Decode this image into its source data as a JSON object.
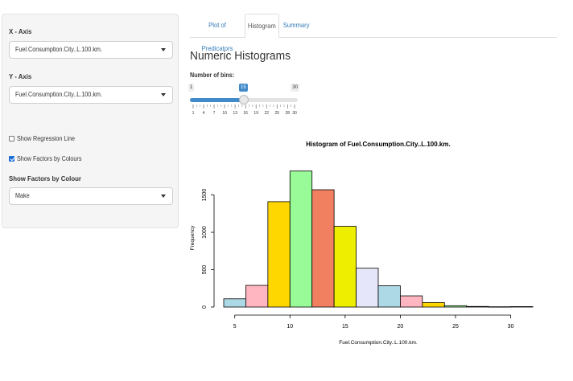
{
  "sidebar": {
    "x_axis_label": "X - Axis",
    "x_axis_value": "Fuel.Consumption.City..L.100.km.",
    "y_axis_label": "Y - Axis",
    "y_axis_value": "Fuel.Consumption.City..L.100.km.",
    "show_regression": {
      "label": "Show Regression Line",
      "checked": false
    },
    "show_factors": {
      "label": "Show Factors by Colours",
      "checked": true
    },
    "factor_label": "Show Factors by Colour",
    "factor_value": "Make"
  },
  "tabs": [
    {
      "label": "Plot of Predicators",
      "active": false
    },
    {
      "label": "Histogram",
      "active": true
    },
    {
      "label": "Summary",
      "active": false
    }
  ],
  "main": {
    "heading": "Numeric Histograms",
    "bins_label": "Number of bins:",
    "bins_min": "1",
    "bins_max": "30",
    "bins_value": "15",
    "bins_tick_labels": [
      "1",
      "4",
      "7",
      "10",
      "13",
      "16",
      "19",
      "22",
      "25",
      "28",
      "30"
    ]
  },
  "chart_data": {
    "type": "bar",
    "title": "Histogram of Fuel.Consumption.City..L.100.km.",
    "xlabel": "Fuel.Consumption.City..L.100.km.",
    "ylabel": "Frequency",
    "xlim": [
      4,
      32
    ],
    "ylim": [
      0,
      1850
    ],
    "xticks": [
      5,
      10,
      15,
      20,
      25,
      30
    ],
    "yticks": [
      0,
      500,
      1000,
      1500
    ],
    "bins": [
      {
        "x0": 4,
        "x1": 6,
        "value": 110,
        "color": "#add8e6"
      },
      {
        "x0": 6,
        "x1": 8,
        "value": 290,
        "color": "#ffb6c1"
      },
      {
        "x0": 8,
        "x1": 10,
        "value": 1410,
        "color": "#ffd700"
      },
      {
        "x0": 10,
        "x1": 12,
        "value": 1820,
        "color": "#98fb98"
      },
      {
        "x0": 12,
        "x1": 14,
        "value": 1570,
        "color": "#f08060"
      },
      {
        "x0": 14,
        "x1": 16,
        "value": 1080,
        "color": "#eeee00"
      },
      {
        "x0": 16,
        "x1": 18,
        "value": 520,
        "color": "#e6e6fa"
      },
      {
        "x0": 18,
        "x1": 20,
        "value": 285,
        "color": "#add8e6"
      },
      {
        "x0": 20,
        "x1": 22,
        "value": 150,
        "color": "#ffb6c1"
      },
      {
        "x0": 22,
        "x1": 24,
        "value": 60,
        "color": "#ffd700"
      },
      {
        "x0": 24,
        "x1": 26,
        "value": 18,
        "color": "#98fb98"
      },
      {
        "x0": 26,
        "x1": 28,
        "value": 8,
        "color": "#f08060"
      },
      {
        "x0": 28,
        "x1": 30,
        "value": 4,
        "color": "#eeee00"
      },
      {
        "x0": 30,
        "x1": 32,
        "value": 6,
        "color": "#e6e6fa"
      }
    ]
  }
}
